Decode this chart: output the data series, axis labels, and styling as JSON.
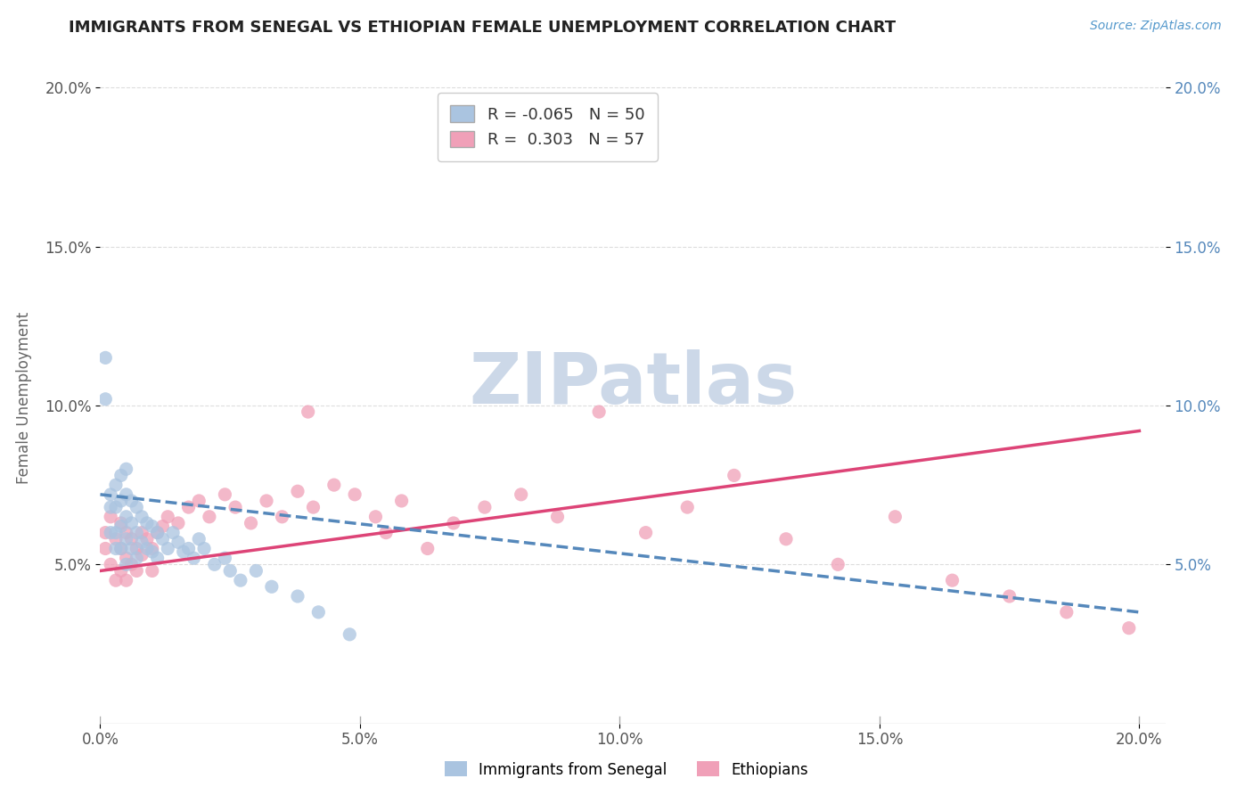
{
  "title": "IMMIGRANTS FROM SENEGAL VS ETHIOPIAN FEMALE UNEMPLOYMENT CORRELATION CHART",
  "source_text": "Source: ZipAtlas.com",
  "ylabel": "Female Unemployment",
  "xlim": [
    0.0,
    0.205
  ],
  "ylim": [
    0.0,
    0.205
  ],
  "xticks": [
    0.0,
    0.05,
    0.1,
    0.15,
    0.2
  ],
  "yticks": [
    0.05,
    0.1,
    0.15,
    0.2
  ],
  "xticklabels": [
    "0.0%",
    "5.0%",
    "10.0%",
    "15.0%",
    "20.0%"
  ],
  "yticklabels": [
    "5.0%",
    "10.0%",
    "15.0%",
    "20.0%"
  ],
  "senegal_R": -0.065,
  "senegal_N": 50,
  "ethiopian_R": 0.303,
  "ethiopian_N": 57,
  "senegal_color": "#aac4e0",
  "ethiopian_color": "#f0a0b8",
  "senegal_line_color": "#5588bb",
  "ethiopian_line_color": "#dd4477",
  "watermark_color": "#ccd8e8",
  "title_color": "#222222",
  "background_color": "#ffffff",
  "grid_color": "#dddddd",
  "senegal_x": [
    0.001,
    0.001,
    0.002,
    0.002,
    0.002,
    0.003,
    0.003,
    0.003,
    0.003,
    0.004,
    0.004,
    0.004,
    0.004,
    0.005,
    0.005,
    0.005,
    0.005,
    0.005,
    0.006,
    0.006,
    0.006,
    0.007,
    0.007,
    0.007,
    0.008,
    0.008,
    0.009,
    0.009,
    0.01,
    0.01,
    0.011,
    0.011,
    0.012,
    0.013,
    0.014,
    0.015,
    0.016,
    0.017,
    0.018,
    0.019,
    0.02,
    0.022,
    0.024,
    0.025,
    0.027,
    0.03,
    0.033,
    0.038,
    0.042,
    0.048
  ],
  "senegal_y": [
    0.115,
    0.102,
    0.072,
    0.068,
    0.06,
    0.075,
    0.068,
    0.06,
    0.055,
    0.078,
    0.07,
    0.062,
    0.055,
    0.08,
    0.072,
    0.065,
    0.058,
    0.05,
    0.07,
    0.063,
    0.055,
    0.068,
    0.06,
    0.052,
    0.065,
    0.057,
    0.063,
    0.055,
    0.062,
    0.054,
    0.06,
    0.052,
    0.058,
    0.055,
    0.06,
    0.057,
    0.054,
    0.055,
    0.052,
    0.058,
    0.055,
    0.05,
    0.052,
    0.048,
    0.045,
    0.048,
    0.043,
    0.04,
    0.035,
    0.028
  ],
  "ethiopian_x": [
    0.001,
    0.001,
    0.002,
    0.002,
    0.003,
    0.003,
    0.004,
    0.004,
    0.004,
    0.005,
    0.005,
    0.005,
    0.006,
    0.006,
    0.007,
    0.007,
    0.008,
    0.008,
    0.009,
    0.01,
    0.01,
    0.011,
    0.012,
    0.013,
    0.015,
    0.017,
    0.019,
    0.021,
    0.024,
    0.026,
    0.029,
    0.032,
    0.035,
    0.038,
    0.041,
    0.045,
    0.049,
    0.053,
    0.058,
    0.063,
    0.068,
    0.074,
    0.081,
    0.088,
    0.096,
    0.105,
    0.113,
    0.122,
    0.132,
    0.142,
    0.153,
    0.164,
    0.175,
    0.186,
    0.198,
    0.04,
    0.055
  ],
  "ethiopian_y": [
    0.06,
    0.055,
    0.065,
    0.05,
    0.058,
    0.045,
    0.063,
    0.055,
    0.048,
    0.06,
    0.052,
    0.045,
    0.058,
    0.05,
    0.055,
    0.048,
    0.06,
    0.053,
    0.058,
    0.055,
    0.048,
    0.06,
    0.062,
    0.065,
    0.063,
    0.068,
    0.07,
    0.065,
    0.072,
    0.068,
    0.063,
    0.07,
    0.065,
    0.073,
    0.068,
    0.075,
    0.072,
    0.065,
    0.07,
    0.055,
    0.063,
    0.068,
    0.072,
    0.065,
    0.098,
    0.06,
    0.068,
    0.078,
    0.058,
    0.05,
    0.065,
    0.045,
    0.04,
    0.035,
    0.03,
    0.098,
    0.06
  ],
  "senegal_trendline_x": [
    0.0,
    0.2
  ],
  "senegal_trendline_y": [
    0.072,
    0.035
  ],
  "ethiopian_trendline_x": [
    0.0,
    0.2
  ],
  "ethiopian_trendline_y": [
    0.048,
    0.092
  ]
}
